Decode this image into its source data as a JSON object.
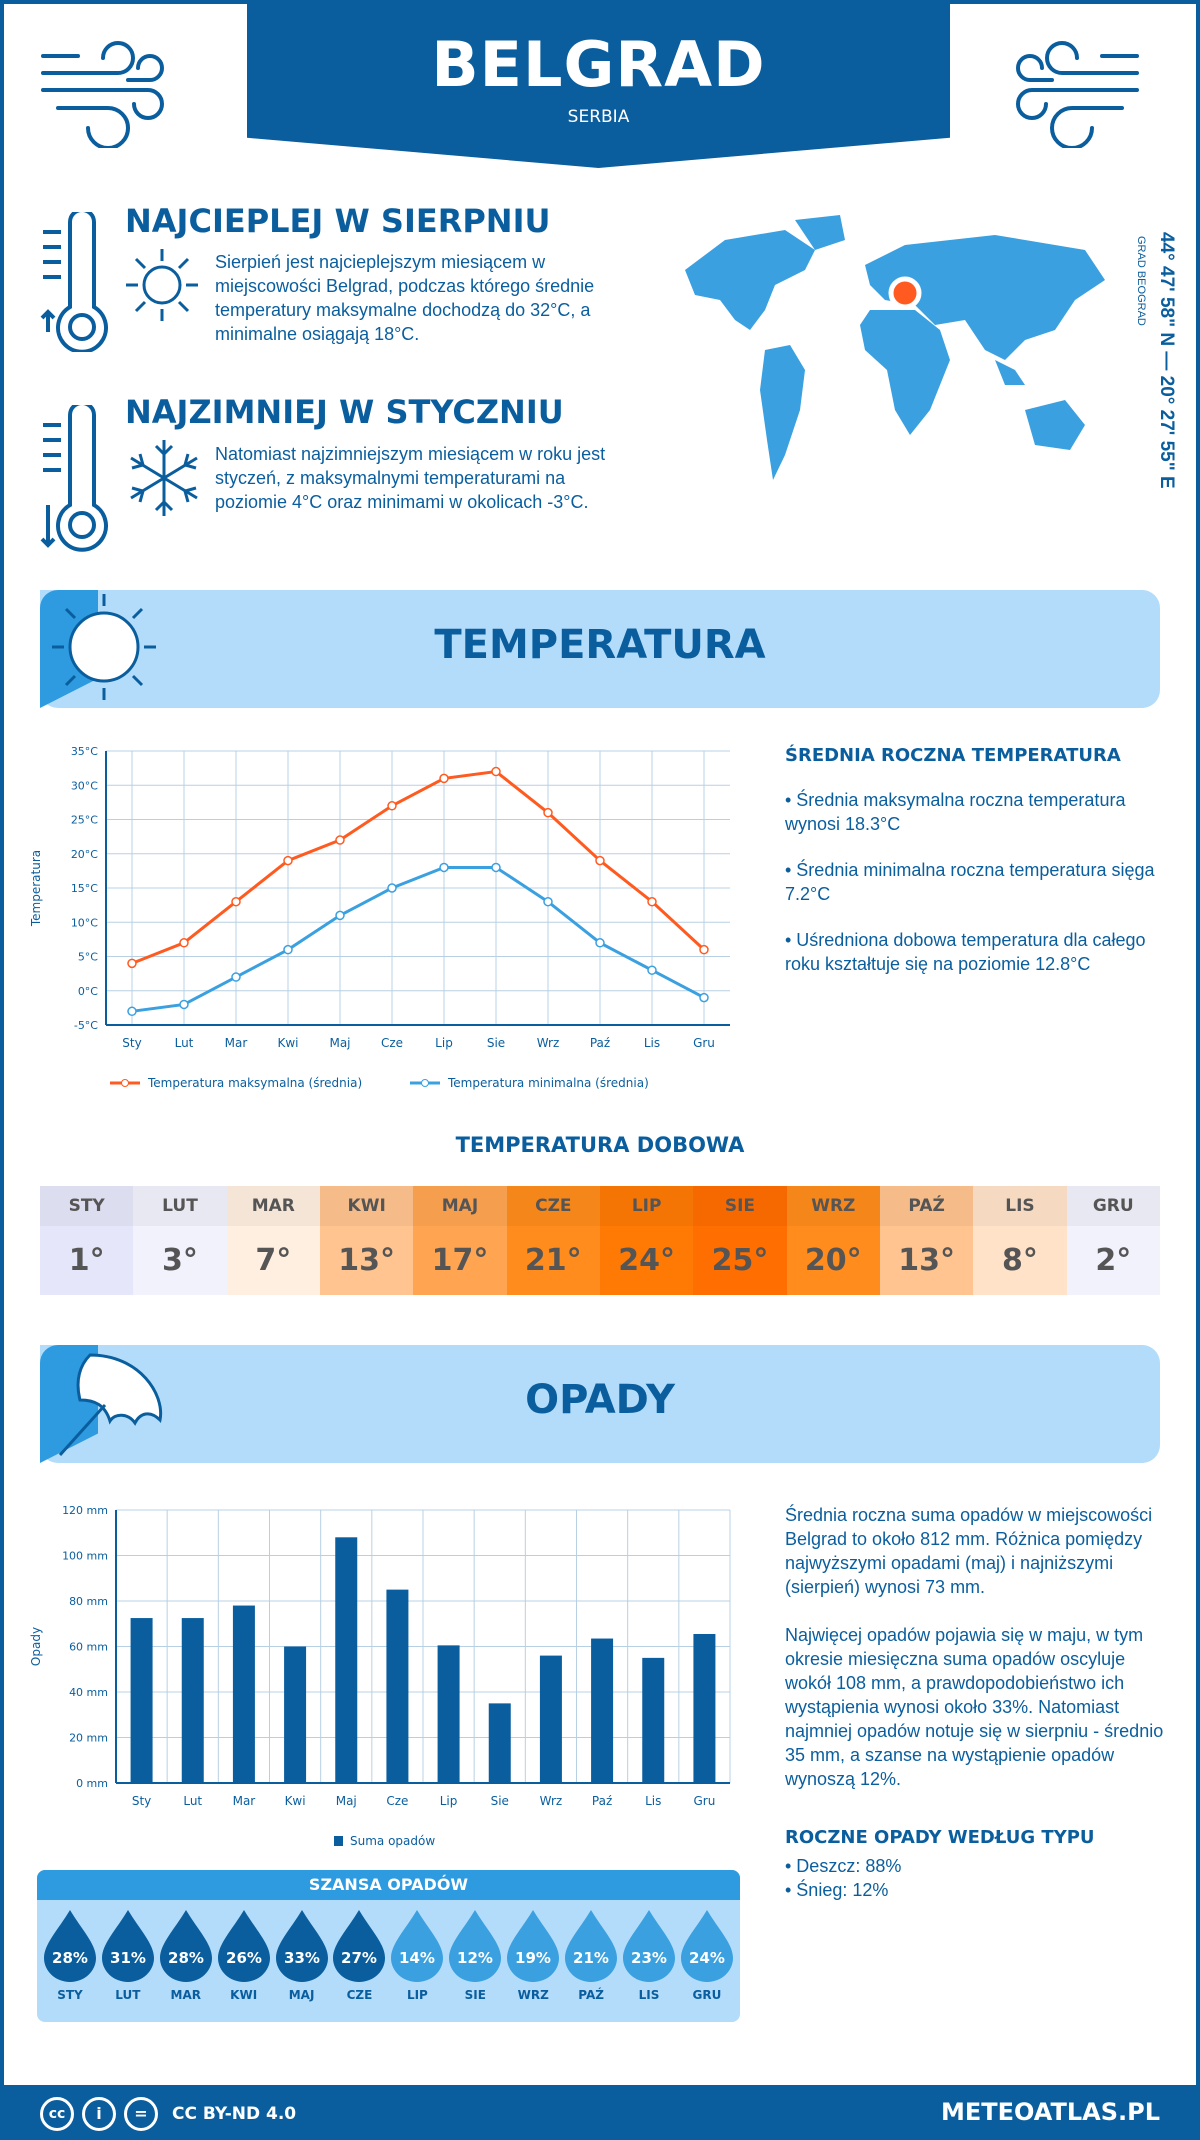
{
  "header": {
    "title": "BELGRAD",
    "subtitle": "SERBIA"
  },
  "hottest": {
    "title": "NAJCIEPLEJ W SIERPNIU",
    "text": "Sierpień jest najcieplejszym miesiącem w miejscowości Belgrad, podczas którego średnie temperatury maksymalne dochodzą do 32°C, a minimalne osiągają 18°C."
  },
  "coldest": {
    "title": "NAJZIMNIEJ W STYCZNIU",
    "text": "Natomiast najzimniejszym miesiącem w roku jest styczeń, z maksymalnymi temperaturami na poziomie 4°C oraz minimami w okolicach -3°C."
  },
  "coords": {
    "text": "44° 47' 58\" N — 20° 27' 55\" E",
    "region": "GRAD BEOGRAD"
  },
  "temp_section": {
    "title": "TEMPERATURA",
    "side_title": "ŚREDNIA ROCZNA TEMPERATURA",
    "bullets": [
      "• Średnia maksymalna roczna temperatura wynosi 18.3°C",
      "• Średnia minimalna roczna temperatura sięga 7.2°C",
      "• Uśredniona dobowa temperatura dla całego roku kształtuje się na poziomie 12.8°C"
    ]
  },
  "chart_data": [
    {
      "type": "line",
      "ylabel": "Temperatura",
      "ylim": [
        -5,
        35
      ],
      "yticks": [
        "-5°C",
        "0°C",
        "5°C",
        "10°C",
        "15°C",
        "20°C",
        "25°C",
        "30°C",
        "35°C"
      ],
      "categories": [
        "Sty",
        "Lut",
        "Mar",
        "Kwi",
        "Maj",
        "Cze",
        "Lip",
        "Sie",
        "Wrz",
        "Paź",
        "Lis",
        "Gru"
      ],
      "grid": true,
      "legend": "bottom",
      "series": [
        {
          "name": "Temperatura maksymalna (średnia)",
          "color": "#ff5a1f",
          "values": [
            4,
            7,
            13,
            19,
            22,
            27,
            31,
            32,
            26,
            19,
            13,
            6
          ]
        },
        {
          "name": "Temperatura minimalna (średnia)",
          "color": "#3aa0e0",
          "values": [
            -3,
            -2,
            2,
            6,
            11,
            15,
            18,
            18,
            13,
            7,
            3,
            -1
          ]
        }
      ]
    },
    {
      "type": "bar",
      "ylabel": "Opady",
      "ylim": [
        0,
        120
      ],
      "yticks": [
        "0 mm",
        "20 mm",
        "40 mm",
        "60 mm",
        "80 mm",
        "100 mm",
        "120 mm"
      ],
      "categories": [
        "Sty",
        "Lut",
        "Mar",
        "Kwi",
        "Maj",
        "Cze",
        "Lip",
        "Sie",
        "Wrz",
        "Paź",
        "Lis",
        "Gru"
      ],
      "grid": true,
      "legend": "bottom",
      "series": [
        {
          "name": "Suma opadów",
          "color": "#0a5e9e",
          "values": [
            72.5,
            72.5,
            78,
            60,
            108,
            85,
            60.5,
            35,
            56,
            63.5,
            55,
            65.5
          ]
        }
      ]
    }
  ],
  "daily": {
    "title": "TEMPERATURA DOBOWA",
    "months": [
      "STY",
      "LUT",
      "MAR",
      "KWI",
      "MAJ",
      "CZE",
      "LIP",
      "SIE",
      "WRZ",
      "PAŹ",
      "LIS",
      "GRU"
    ],
    "values": [
      "1°",
      "3°",
      "7°",
      "13°",
      "17°",
      "21°",
      "24°",
      "25°",
      "20°",
      "13°",
      "8°",
      "2°"
    ],
    "colors": [
      "#e6e6fa",
      "#f2f2fc",
      "#ffefe0",
      "#ffc490",
      "#ffa552",
      "#ff8c1c",
      "#ff7a05",
      "#ff6e00",
      "#ff8c1c",
      "#ffc490",
      "#ffe2c8",
      "#f2f2fc"
    ]
  },
  "precip_section": {
    "title": "OPADY",
    "text1": "Średnia roczna suma opadów w miejscowości Belgrad to około 812 mm. Różnica pomiędzy najwyższymi opadami (maj) i najniższymi (sierpień) wynosi 73 mm.",
    "text2": "Najwięcej opadów pojawia się w maju, w tym okresie miesięczna suma opadów oscyluje wokół 108 mm, a prawdopodobieństwo ich wystąpienia wynosi około 33%. Natomiast najmniej opadów notuje się w sierpniu - średnio 35 mm, a szanse na wystąpienie opadów wynoszą 12%.",
    "type_title": "ROCZNE OPADY WEDŁUG TYPU",
    "types": [
      "• Deszcz: 88%",
      "• Śnieg: 12%"
    ]
  },
  "chance": {
    "title": "SZANSA OPADÓW",
    "months": [
      "STY",
      "LUT",
      "MAR",
      "KWI",
      "MAJ",
      "CZE",
      "LIP",
      "SIE",
      "WRZ",
      "PAŹ",
      "LIS",
      "GRU"
    ],
    "values": [
      "28%",
      "31%",
      "28%",
      "26%",
      "33%",
      "27%",
      "14%",
      "12%",
      "19%",
      "21%",
      "23%",
      "24%"
    ],
    "colors": {
      "high": "#0a5e9e",
      "low": "#3aa0e0"
    }
  },
  "footer": {
    "license": "CC BY-ND 4.0",
    "site": "METEOATLAS.PL"
  }
}
